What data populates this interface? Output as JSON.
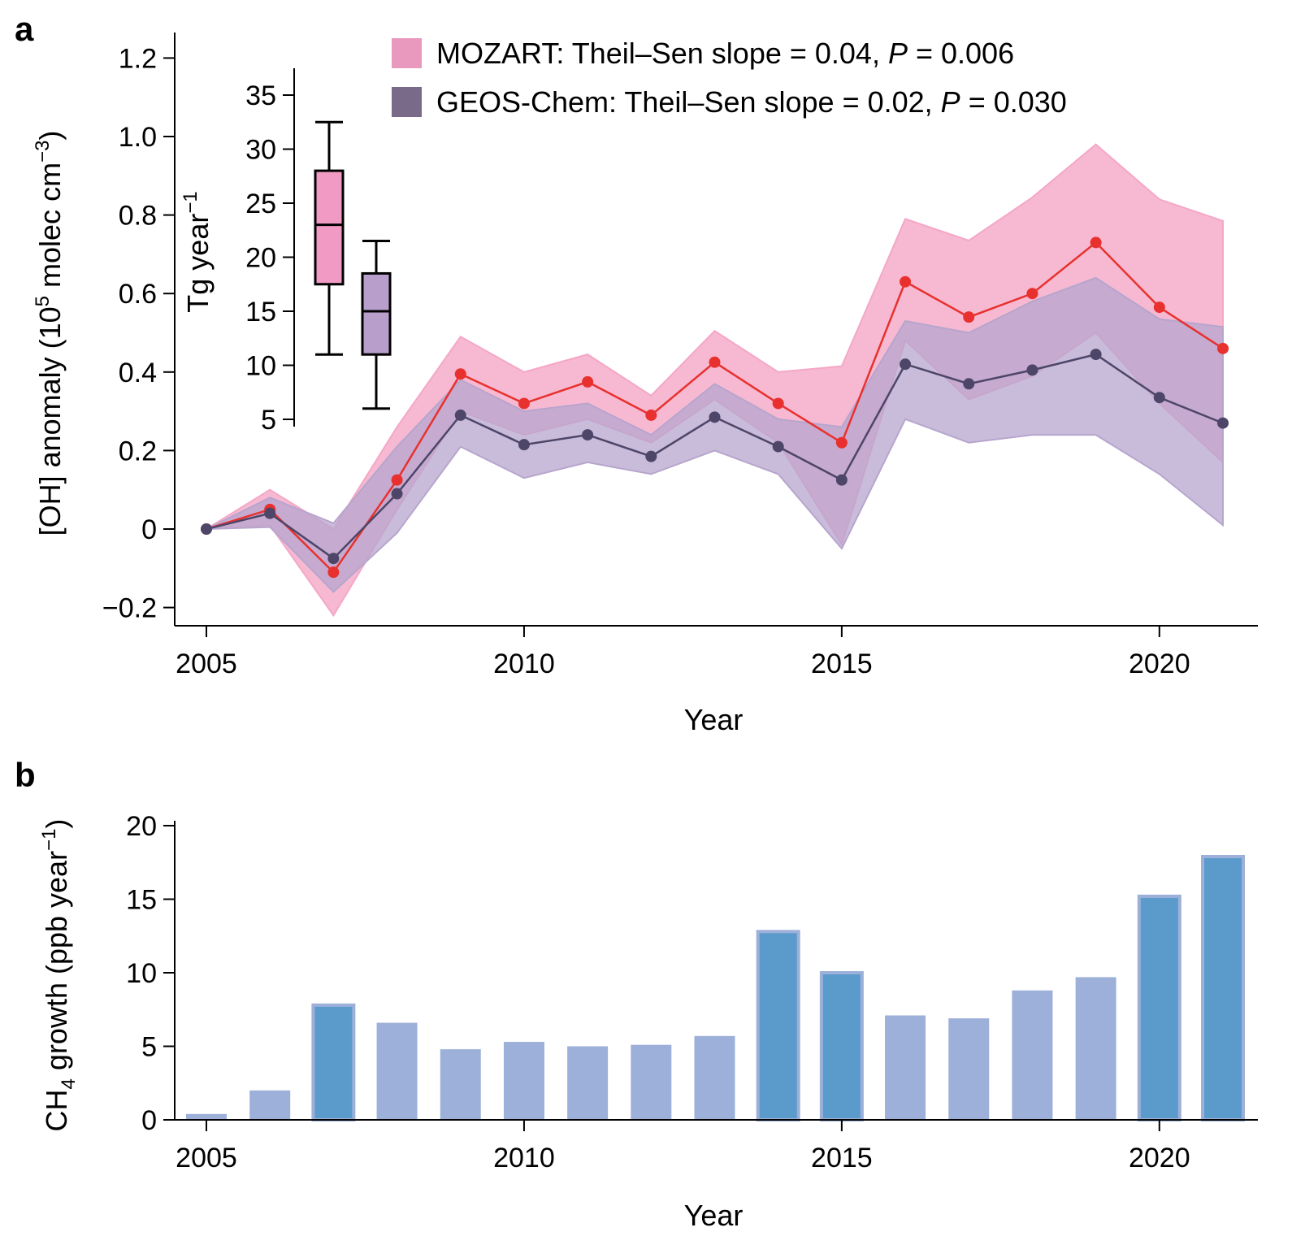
{
  "figure": {
    "panel_a_letter": "a",
    "panel_b_letter": "b"
  },
  "legend": {
    "mozart": {
      "prefix": "MOZART: Theil–Sen slope = 0.04, ",
      "p_symbol": "P",
      "p_suffix": " = 0.006",
      "color": "#e899bd"
    },
    "geos": {
      "prefix": "GEOS-Chem: Theil–Sen slope = 0.02, ",
      "p_symbol": "P",
      "p_suffix": " = 0.030",
      "color": "#7a6a8a"
    }
  },
  "chart_data": [
    {
      "type": "line",
      "panel": "a",
      "xlabel": "Year",
      "ylabel_parts": {
        "base": "[OH] anomaly (10",
        "sup1": "5",
        "mid": " molec cm",
        "sup2": "−3",
        "end": ")"
      },
      "xlim": [
        2004.5,
        2021.5
      ],
      "ylim": [
        -0.25,
        1.25
      ],
      "xticks": [
        2005,
        2010,
        2015,
        2020
      ],
      "yticks": [
        -0.2,
        0,
        0.2,
        0.4,
        0.6,
        0.8,
        1.0,
        1.2
      ],
      "ytick_labels": [
        "−0.2",
        "0",
        "0.2",
        "0.4",
        "0.6",
        "0.8",
        "1.0",
        "1.2"
      ],
      "x": [
        2005,
        2006,
        2007,
        2008,
        2009,
        2010,
        2011,
        2012,
        2013,
        2014,
        2015,
        2016,
        2017,
        2018,
        2019,
        2020,
        2021
      ],
      "series": [
        {
          "name": "MOZART",
          "line_color": "#e8312e",
          "band_color": "#f4a7c6",
          "values": [
            0.0,
            0.05,
            -0.11,
            0.125,
            0.395,
            0.32,
            0.375,
            0.29,
            0.425,
            0.32,
            0.22,
            0.63,
            0.54,
            0.6,
            0.73,
            0.565,
            0.46
          ],
          "lower": [
            0.0,
            0.01,
            -0.22,
            0.05,
            0.3,
            0.24,
            0.28,
            0.22,
            0.33,
            0.22,
            -0.04,
            0.48,
            0.33,
            0.39,
            0.5,
            0.32,
            0.17
          ],
          "upper": [
            0.0,
            0.1,
            0.0,
            0.26,
            0.49,
            0.4,
            0.445,
            0.34,
            0.505,
            0.4,
            0.415,
            0.79,
            0.735,
            0.845,
            0.98,
            0.84,
            0.785
          ]
        },
        {
          "name": "GEOS-Chem",
          "line_color": "#4d4669",
          "band_color": "#b7a5cd",
          "values": [
            0.0,
            0.04,
            -0.075,
            0.09,
            0.29,
            0.215,
            0.24,
            0.185,
            0.285,
            0.21,
            0.125,
            0.42,
            0.37,
            0.405,
            0.445,
            0.335,
            0.27
          ],
          "lower": [
            0.0,
            0.005,
            -0.16,
            -0.01,
            0.21,
            0.13,
            0.17,
            0.14,
            0.2,
            0.14,
            -0.05,
            0.28,
            0.22,
            0.24,
            0.24,
            0.14,
            0.01
          ],
          "upper": [
            0.0,
            0.08,
            0.015,
            0.21,
            0.38,
            0.3,
            0.32,
            0.24,
            0.37,
            0.28,
            0.26,
            0.53,
            0.5,
            0.58,
            0.64,
            0.535,
            0.515
          ]
        }
      ]
    },
    {
      "type": "box",
      "panel": "a-inset",
      "ylabel_parts": {
        "base": "Tg year",
        "sup": "−1"
      },
      "ylim": [
        4,
        37
      ],
      "yticks": [
        5,
        10,
        15,
        20,
        25,
        30,
        35
      ],
      "boxes": [
        {
          "name": "MOZART",
          "color": "#f19ac3",
          "whisker_low": 11,
          "q1": 17.5,
          "median": 23,
          "q3": 28,
          "whisker_high": 32.5
        },
        {
          "name": "GEOS-Chem",
          "color": "#b89fcb",
          "whisker_low": 6,
          "q1": 11,
          "median": 15,
          "q3": 18.5,
          "whisker_high": 21.5
        }
      ]
    },
    {
      "type": "bar",
      "panel": "b",
      "xlabel": "Year",
      "ylabel_parts": {
        "base": "CH",
        "sub": "4",
        "mid": " growth (ppb year",
        "sup": "−1",
        "end": ")"
      },
      "xlim": [
        2004.5,
        2021.5
      ],
      "ylim": [
        0,
        20.5
      ],
      "xticks": [
        2005,
        2010,
        2015,
        2020
      ],
      "yticks": [
        0,
        5,
        10,
        15,
        20
      ],
      "categories": [
        2005,
        2006,
        2007,
        2008,
        2009,
        2010,
        2011,
        2012,
        2013,
        2014,
        2015,
        2016,
        2017,
        2018,
        2019,
        2020,
        2021
      ],
      "values": [
        0.4,
        2.0,
        7.8,
        6.6,
        4.8,
        5.3,
        5.0,
        5.1,
        5.7,
        12.8,
        10.0,
        7.1,
        6.9,
        8.8,
        9.7,
        15.2,
        17.9
      ],
      "highlighted": [
        false,
        false,
        true,
        false,
        false,
        false,
        false,
        false,
        false,
        true,
        true,
        false,
        false,
        false,
        false,
        true,
        true
      ],
      "colors": {
        "normal": "#9db0d9",
        "highlight": "#5b9bcc",
        "highlight_edge": "#9db0d9"
      }
    }
  ]
}
